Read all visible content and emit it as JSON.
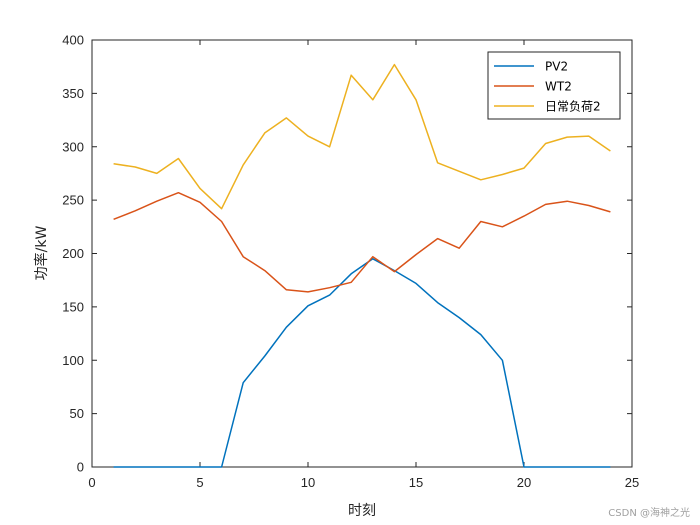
{
  "chart_data": {
    "type": "line",
    "xlabel": "时刻",
    "ylabel": "功率/kW",
    "xlim": [
      0,
      25
    ],
    "ylim": [
      0,
      400
    ],
    "xticks": [
      0,
      5,
      10,
      15,
      20,
      25
    ],
    "yticks": [
      0,
      50,
      100,
      150,
      200,
      250,
      300,
      350,
      400
    ],
    "grid": false,
    "legend_position": "top-right",
    "series": [
      {
        "name": "PV2",
        "color": "#0072BD",
        "x": [
          1,
          2,
          3,
          4,
          5,
          6,
          7,
          8,
          9,
          10,
          11,
          12,
          13,
          14,
          15,
          16,
          17,
          18,
          19,
          20,
          21,
          22,
          23,
          24
        ],
        "values": [
          0,
          0,
          0,
          0,
          0,
          0,
          79,
          104,
          131,
          151,
          161,
          181,
          195,
          184,
          172,
          154,
          140,
          124,
          100,
          0,
          0,
          0,
          0,
          0
        ]
      },
      {
        "name": "WT2",
        "color": "#D95319",
        "x": [
          1,
          2,
          3,
          4,
          5,
          6,
          7,
          8,
          9,
          10,
          11,
          12,
          13,
          14,
          15,
          16,
          17,
          18,
          19,
          20,
          21,
          22,
          23,
          24
        ],
        "values": [
          232,
          240,
          249,
          257,
          248,
          230,
          197,
          184,
          166,
          164,
          168,
          173,
          197,
          183,
          199,
          214,
          205,
          230,
          225,
          235,
          246,
          249,
          245,
          239
        ]
      },
      {
        "name": "日常负荷2",
        "color": "#EDB120",
        "x": [
          1,
          2,
          3,
          4,
          5,
          6,
          7,
          8,
          9,
          10,
          11,
          12,
          13,
          14,
          15,
          16,
          17,
          18,
          19,
          20,
          21,
          22,
          23,
          24
        ],
        "values": [
          284,
          281,
          275,
          289,
          261,
          242,
          283,
          313,
          327,
          310,
          300,
          367,
          344,
          377,
          344,
          285,
          277,
          269,
          274,
          280,
          303,
          309,
          310,
          296
        ]
      }
    ]
  },
  "watermark": "CSDN @海神之光"
}
